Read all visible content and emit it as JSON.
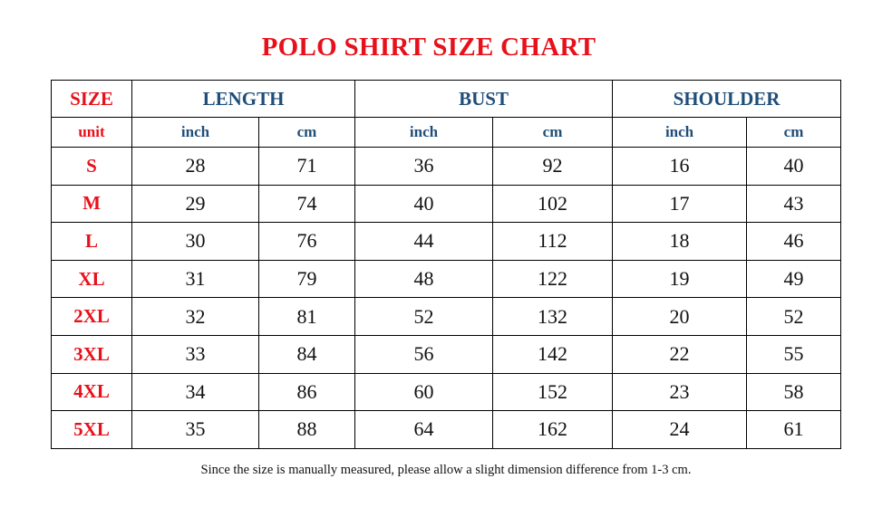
{
  "title": "POLO SHIRT SIZE CHART",
  "header": {
    "size": "SIZE",
    "groups": [
      "LENGTH",
      "BUST",
      "SHOULDER"
    ]
  },
  "units": {
    "label": "unit",
    "cols": [
      "inch",
      "cm",
      "inch",
      "cm",
      "inch",
      "cm"
    ]
  },
  "rows": [
    {
      "size": "S",
      "values": [
        "28",
        "71",
        "36",
        "92",
        "16",
        "40"
      ]
    },
    {
      "size": "M",
      "values": [
        "29",
        "74",
        "40",
        "102",
        "17",
        "43"
      ]
    },
    {
      "size": "L",
      "values": [
        "30",
        "76",
        "44",
        "112",
        "18",
        "46"
      ]
    },
    {
      "size": "XL",
      "values": [
        "31",
        "79",
        "48",
        "122",
        "19",
        "49"
      ]
    },
    {
      "size": "2XL",
      "values": [
        "32",
        "81",
        "52",
        "132",
        "20",
        "52"
      ]
    },
    {
      "size": "3XL",
      "values": [
        "33",
        "84",
        "56",
        "142",
        "22",
        "55"
      ]
    },
    {
      "size": "4XL",
      "values": [
        "34",
        "86",
        "60",
        "152",
        "23",
        "58"
      ]
    },
    {
      "size": "5XL",
      "values": [
        "35",
        "88",
        "64",
        "162",
        "24",
        "61"
      ]
    }
  ],
  "note": "Since the size is manually measured, please allow a slight dimension difference from 1-3 cm.",
  "colors": {
    "red": "#e8101a",
    "blue": "#1f4e79"
  }
}
